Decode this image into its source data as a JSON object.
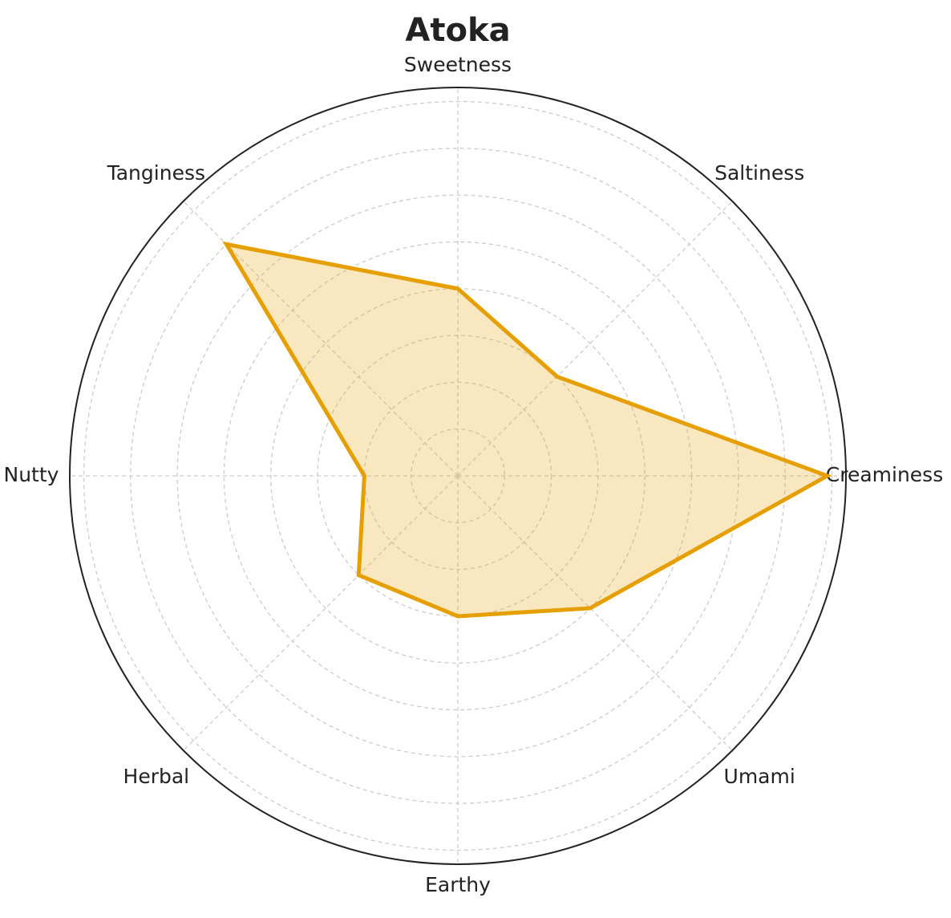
{
  "chart_data": {
    "type": "radar",
    "title": "Atoka",
    "categories": [
      "Sweetness",
      "Saltiness",
      "Creaminess",
      "Umami",
      "Earthy",
      "Herbal",
      "Nutty",
      "Tanginess"
    ],
    "series": [
      {
        "color": "#e69f00",
        "values": [
          4,
          3,
          7.9,
          4,
          3,
          3,
          2,
          7
        ]
      }
    ],
    "ylim": [
      0,
      8.3
    ],
    "yticks": [
      1,
      2,
      3,
      4,
      5,
      6,
      7,
      8
    ],
    "grid": true
  }
}
